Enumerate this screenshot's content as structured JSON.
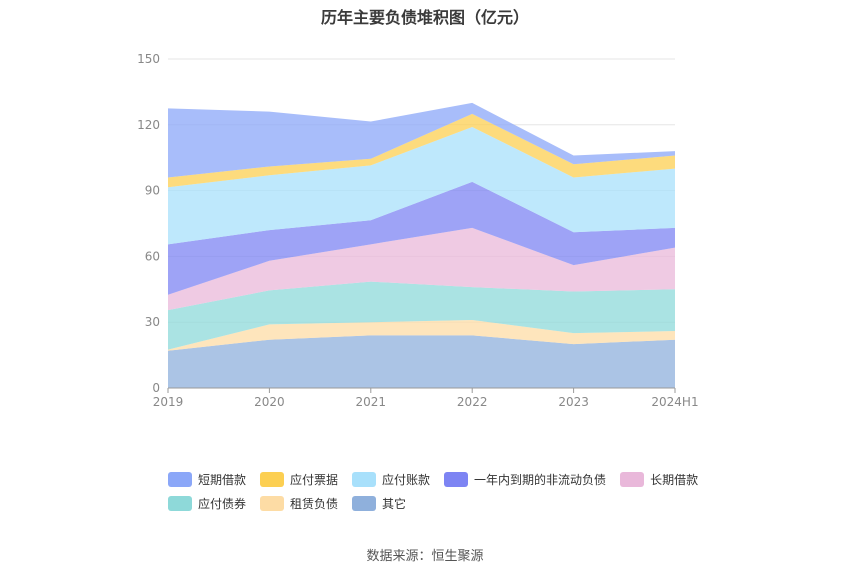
{
  "title": "历年主要负债堆积图（亿元）",
  "source": "数据来源：恒生聚源",
  "chart_data": {
    "type": "area",
    "stacked": true,
    "categories": [
      "2019",
      "2020",
      "2021",
      "2022",
      "2023",
      "2024H1"
    ],
    "ylim": [
      0,
      150
    ],
    "yticks": [
      0,
      30,
      60,
      90,
      120,
      150
    ],
    "grid": true,
    "legend_position": "bottom",
    "series": [
      {
        "name": "其它",
        "color": "#8fb0dc",
        "values": [
          17,
          22,
          24,
          24,
          20,
          22
        ]
      },
      {
        "name": "租赁负债",
        "color": "#fddca5",
        "values": [
          0.5,
          7,
          6,
          7,
          5,
          4
        ]
      },
      {
        "name": "应付债券",
        "color": "#8ed9d9",
        "values": [
          18,
          15.5,
          18.5,
          15,
          19,
          19
        ]
      },
      {
        "name": "长期借款",
        "color": "#e9b8da",
        "values": [
          7,
          13.5,
          17,
          27,
          12,
          19
        ]
      },
      {
        "name": "一年内到期的非流动负债",
        "color": "#7d84f3",
        "values": [
          23,
          14,
          11,
          21,
          15,
          9
        ]
      },
      {
        "name": "应付账款",
        "color": "#a8e0fb",
        "values": [
          26,
          25,
          25,
          25,
          25,
          27
        ]
      },
      {
        "name": "应付票据",
        "color": "#fccf52",
        "values": [
          4.5,
          4,
          3,
          6,
          6,
          6
        ]
      },
      {
        "name": "短期借款",
        "color": "#8ba7f8",
        "values": [
          31.5,
          25,
          17,
          5,
          4,
          2
        ]
      }
    ],
    "legend_order": [
      "短期借款",
      "应付票据",
      "应付账款",
      "一年内到期的非流动负债",
      "长期借款",
      "应付债券",
      "租赁负债",
      "其它"
    ]
  }
}
